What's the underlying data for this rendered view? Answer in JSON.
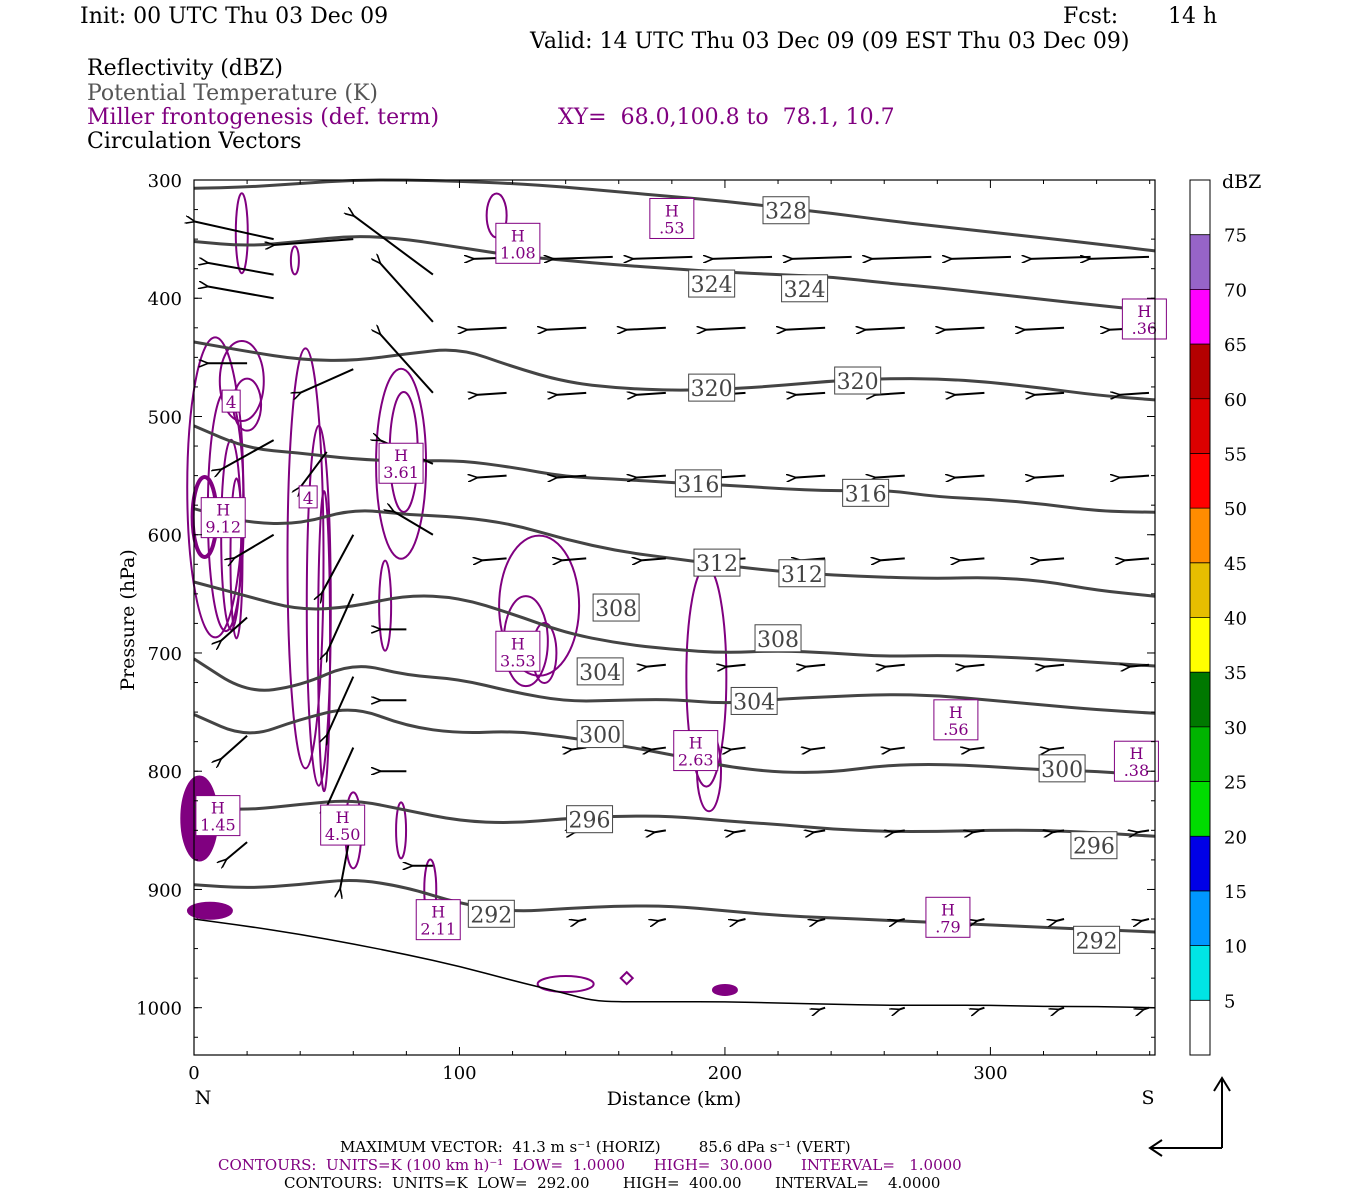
{
  "header": {
    "init": "Init: 00 UTC Thu 03 Dec 09",
    "fcst_label": "Fcst:",
    "fcst_value": "14 h",
    "valid": "Valid: 14 UTC Thu 03 Dec 09 (09 EST Thu 03 Dec 09)"
  },
  "legend_lines": {
    "reflectivity": "Reflectivity (dBZ)",
    "theta": "Potential Temperature (K)",
    "miller": "Miller frontogenesis (def. term)",
    "xy": "XY=  68.0,100.8 to  78.1, 10.7",
    "vectors": "Circulation Vectors"
  },
  "colors": {
    "frontogenesis": "#800080",
    "theta": "#444444",
    "axes": "#000000"
  },
  "colorbar": {
    "unit": "dBZ",
    "labels": [
      "5",
      "10",
      "15",
      "20",
      "25",
      "30",
      "35",
      "40",
      "45",
      "50",
      "55",
      "60",
      "65",
      "70",
      "75"
    ],
    "colors": [
      "#ffffff",
      "#00e5e5",
      "#0096ff",
      "#0000e6",
      "#00dc00",
      "#00b400",
      "#007800",
      "#ffff00",
      "#e6be00",
      "#ff8c00",
      "#ff0000",
      "#dc0000",
      "#b40000",
      "#ff00ff",
      "#9664c8",
      "#ffffff"
    ]
  },
  "footer": {
    "max_vector": "MAXIMUM VECTOR:  41.3 m s⁻¹ (HORIZ)        85.6 dPa s⁻¹ (VERT)",
    "contours_1": "CONTOURS:  UNITS=K (100 km h)⁻¹  LOW=  1.0000      HIGH=  30.000      INTERVAL=   1.0000",
    "contours_2": "CONTOURS:  UNITS=K  LOW=  292.00       HIGH=  400.00       INTERVAL=    4.0000"
  },
  "chart_data": {
    "type": "cross-section",
    "xlabel": "Distance (km)",
    "ylabel": "Pressure (hPa)",
    "xlim": [
      0,
      362
    ],
    "ylim": [
      1040,
      300
    ],
    "x_ticks": [
      "0",
      "100",
      "200",
      "300"
    ],
    "y_ticks": [
      "300",
      "400",
      "500",
      "600",
      "700",
      "800",
      "900",
      "1000"
    ],
    "x_left_label": "N",
    "x_right_label": "S",
    "theta_contours": [
      {
        "label": "328",
        "x": [
          0,
          20,
          40,
          60,
          80,
          100,
          120,
          140,
          160,
          180,
          200,
          220,
          240,
          260,
          280,
          300,
          320,
          340,
          362
        ],
        "y": [
          307,
          306,
          303,
          300,
          300,
          301,
          303,
          306,
          310,
          314,
          318,
          323,
          328,
          334,
          339,
          344,
          349,
          354,
          360
        ]
      },
      {
        "label": "324",
        "x": [
          0,
          20,
          40,
          60,
          80,
          100,
          120,
          140,
          160,
          180,
          200,
          220,
          240,
          260,
          280,
          300,
          320,
          340,
          362
        ],
        "y": [
          352,
          356,
          352,
          347,
          350,
          357,
          364,
          368,
          372,
          375,
          378,
          380,
          382,
          387,
          391,
          396,
          401,
          406,
          411
        ]
      },
      {
        "label": "320",
        "x": [
          0,
          20,
          40,
          60,
          80,
          100,
          120,
          140,
          160,
          180,
          200,
          220,
          240,
          260,
          280,
          300,
          320,
          340,
          362
        ],
        "y": [
          437,
          445,
          452,
          453,
          447,
          442,
          458,
          471,
          476,
          478,
          477,
          474,
          470,
          468,
          468,
          471,
          476,
          482,
          486
        ]
      },
      {
        "label": "316",
        "x": [
          0,
          20,
          40,
          60,
          80,
          100,
          120,
          140,
          160,
          180,
          200,
          220,
          240,
          260,
          280,
          300,
          320,
          340,
          362
        ],
        "y": [
          508,
          527,
          531,
          536,
          538,
          537,
          543,
          551,
          553,
          556,
          558,
          561,
          563,
          562,
          568,
          570,
          574,
          580,
          581
        ]
      },
      {
        "label": "312",
        "x": [
          0,
          20,
          40,
          60,
          80,
          100,
          120,
          140,
          160,
          180,
          200,
          220,
          240,
          260,
          280,
          300,
          320,
          340,
          362
        ],
        "y": [
          578,
          590,
          591,
          578,
          583,
          585,
          591,
          604,
          614,
          620,
          626,
          631,
          634,
          636,
          637,
          636,
          639,
          647,
          652
        ]
      },
      {
        "label": "308",
        "x": [
          0,
          20,
          40,
          60,
          80,
          100,
          120,
          140,
          160,
          180,
          200,
          220,
          240,
          260,
          280,
          300,
          320,
          340,
          362
        ],
        "y": [
          640,
          652,
          664,
          661,
          651,
          653,
          667,
          683,
          692,
          697,
          700,
          698,
          700,
          703,
          702,
          703,
          705,
          708,
          711
        ]
      },
      {
        "label": "304",
        "x": [
          0,
          20,
          40,
          60,
          80,
          100,
          120,
          140,
          160,
          180,
          200,
          220,
          240,
          260,
          280,
          300,
          320,
          340,
          362
        ],
        "y": [
          705,
          734,
          728,
          708,
          719,
          722,
          733,
          741,
          740,
          739,
          743,
          739,
          737,
          735,
          736,
          740,
          744,
          748,
          751
        ]
      },
      {
        "label": "300",
        "x": [
          0,
          20,
          40,
          60,
          80,
          100,
          120,
          140,
          160,
          180,
          200,
          220,
          240,
          260,
          280,
          300,
          320,
          340,
          362
        ],
        "y": [
          752,
          772,
          756,
          745,
          762,
          768,
          766,
          771,
          778,
          786,
          796,
          801,
          801,
          795,
          794,
          796,
          799,
          800,
          804
        ]
      },
      {
        "label": "296",
        "x": [
          0,
          20,
          40,
          60,
          80,
          100,
          120,
          140,
          160,
          180,
          200,
          220,
          240,
          260,
          280,
          300,
          320,
          340,
          362
        ],
        "y": [
          830,
          833,
          828,
          824,
          833,
          842,
          844,
          840,
          838,
          838,
          842,
          845,
          849,
          851,
          851,
          850,
          850,
          852,
          855
        ]
      },
      {
        "label": "292",
        "x": [
          0,
          20,
          40,
          60,
          80,
          100,
          120,
          140,
          160,
          180,
          200,
          220,
          240,
          260,
          280,
          300,
          320,
          340,
          362
        ],
        "y": [
          896,
          899,
          896,
          891,
          898,
          912,
          919,
          916,
          914,
          914,
          918,
          922,
          924,
          926,
          928,
          930,
          932,
          934,
          936
        ]
      }
    ],
    "theta_labels": [
      {
        "text": "328",
        "x": 223,
        "y": 326
      },
      {
        "text": "324",
        "x": 195,
        "y": 388
      },
      {
        "text": "324",
        "x": 230,
        "y": 392
      },
      {
        "text": "320",
        "x": 195,
        "y": 476
      },
      {
        "text": "320",
        "x": 250,
        "y": 470
      },
      {
        "text": "316",
        "x": 190,
        "y": 557
      },
      {
        "text": "316",
        "x": 253,
        "y": 565
      },
      {
        "text": "312",
        "x": 197,
        "y": 624
      },
      {
        "text": "312",
        "x": 229,
        "y": 633
      },
      {
        "text": "308",
        "x": 159,
        "y": 662
      },
      {
        "text": "308",
        "x": 220,
        "y": 688
      },
      {
        "text": "304",
        "x": 153,
        "y": 716
      },
      {
        "text": "304",
        "x": 211,
        "y": 741
      },
      {
        "text": "300",
        "x": 153,
        "y": 769
      },
      {
        "text": "300",
        "x": 327,
        "y": 798
      },
      {
        "text": "296",
        "x": 149,
        "y": 841
      },
      {
        "text": "296",
        "x": 339,
        "y": 863
      },
      {
        "text": "292",
        "x": 112,
        "y": 921
      },
      {
        "text": "292",
        "x": 340,
        "y": 943
      }
    ],
    "frontogenesis_maxima": [
      {
        "value": "1.08",
        "x": 122,
        "y": 362
      },
      {
        "value": ".53",
        "x": 180,
        "y": 341
      },
      {
        "value": ".36",
        "x": 358,
        "y": 426
      },
      {
        "value": "3.61",
        "x": 78,
        "y": 548
      },
      {
        "value": "9.12",
        "x": 11,
        "y": 594
      },
      {
        "value": "3.53",
        "x": 122,
        "y": 707
      },
      {
        "value": "2.63",
        "x": 189,
        "y": 791
      },
      {
        "value": ".56",
        "x": 287,
        "y": 765
      },
      {
        "value": ".38",
        "x": 355,
        "y": 800
      },
      {
        "value": "1.45",
        "x": 9,
        "y": 846
      },
      {
        "value": "4.50",
        "x": 56,
        "y": 854
      },
      {
        "value": "2.11",
        "x": 92,
        "y": 934
      },
      {
        "value": ".79",
        "x": 284,
        "y": 932
      }
    ],
    "contour_values": [
      {
        "value": "4",
        "x": 14,
        "y": 487
      },
      {
        "value": "4",
        "x": 43,
        "y": 568
      }
    ],
    "surface": {
      "x": [
        0,
        20,
        40,
        60,
        80,
        100,
        120,
        140,
        150,
        160,
        180,
        200,
        220,
        240,
        260,
        280,
        300,
        320,
        340,
        362
      ],
      "y": [
        925,
        931,
        938,
        946,
        955,
        965,
        977,
        988,
        994,
        995,
        995,
        995,
        996,
        997,
        998,
        998,
        998,
        999,
        999,
        1000
      ]
    }
  }
}
